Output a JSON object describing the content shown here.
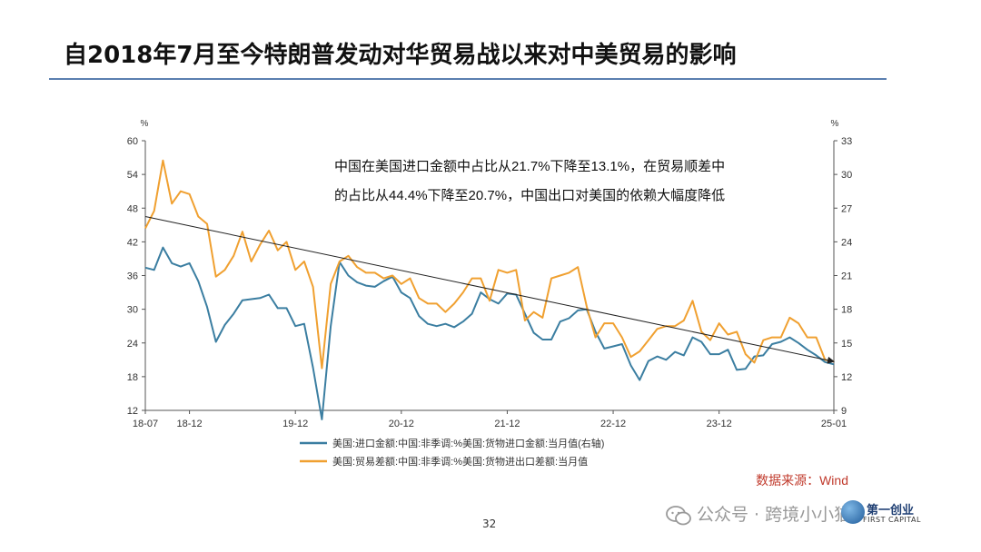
{
  "page": {
    "title": "自2018年7月至今特朗普发动对华贸易战以来对中美贸易的影响",
    "page_number": "32",
    "watermark": "公众号 · 跨境小小猫",
    "logo_cn": "第一创业",
    "logo_en": "FIRST CAPITAL"
  },
  "chart_data": {
    "type": "line",
    "annotation_line1": "中国在美国进口金额中占比从21.7%下降至13.1%，在贸易顺差中",
    "annotation_line2": "的占比从44.4%下降至20.7%，中国出口对美国的依赖大幅度降低",
    "source": "数据来源：Wind",
    "left_axis": {
      "unit": "%",
      "min": 12,
      "max": 60,
      "ticks": [
        12,
        18,
        24,
        30,
        36,
        42,
        48,
        54,
        60
      ]
    },
    "right_axis": {
      "unit": "%",
      "min": 9,
      "max": 33,
      "ticks": [
        9,
        12,
        15,
        18,
        21,
        24,
        27,
        30,
        33
      ]
    },
    "x_ticks": [
      "18-07",
      "18-12",
      "19-12",
      "20-12",
      "21-12",
      "22-12",
      "23-12",
      "25-01"
    ],
    "x_tick_months": [
      0,
      5,
      17,
      29,
      41,
      53,
      65,
      78
    ],
    "series": [
      {
        "name": "美国:进口金额:中国:非季调:%美国:货物进口金额:当月值(右轴)",
        "axis": "right",
        "color": "#3b7ea1",
        "values": [
          21.7,
          21.5,
          23.5,
          22.1,
          21.8,
          22.1,
          20.5,
          18.2,
          15.1,
          16.6,
          17.6,
          18.8,
          18.9,
          19.0,
          19.3,
          18.1,
          18.1,
          16.5,
          16.7,
          12.8,
          8.2,
          16.5,
          22.2,
          21.0,
          20.4,
          20.1,
          20.0,
          20.5,
          20.9,
          19.5,
          19.0,
          17.4,
          16.7,
          16.5,
          16.7,
          16.4,
          16.9,
          17.6,
          19.5,
          18.9,
          18.5,
          19.4,
          19.3,
          17.6,
          15.9,
          15.3,
          15.3,
          16.9,
          17.2,
          17.9,
          18.0,
          16.0,
          14.5,
          14.7,
          14.9,
          13.0,
          11.7,
          13.4,
          13.8,
          13.5,
          14.2,
          13.9,
          15.5,
          15.1,
          14.0,
          14.0,
          14.4,
          12.6,
          12.7,
          13.8,
          13.9,
          14.9,
          15.1,
          15.5,
          15.0,
          14.4,
          13.9,
          13.3,
          13.1
        ]
      },
      {
        "name": "美国:贸易差额:中国:非季调:%美国:货物进出口差额:当月值",
        "axis": "left",
        "color": "#f0a030",
        "values": [
          44.4,
          47.5,
          56.5,
          48.8,
          51.0,
          50.5,
          46.5,
          45.2,
          35.8,
          37.0,
          39.5,
          43.8,
          38.5,
          41.5,
          44.0,
          40.5,
          42.0,
          37.0,
          38.5,
          34.0,
          19.5,
          34.5,
          38.5,
          39.5,
          37.5,
          36.5,
          36.5,
          35.5,
          36.0,
          34.5,
          35.5,
          32.0,
          31.0,
          31.0,
          29.5,
          31.0,
          33.0,
          35.5,
          35.5,
          31.5,
          37.0,
          36.5,
          37.0,
          28.0,
          29.5,
          28.5,
          35.5,
          36.0,
          36.5,
          37.5,
          30.5,
          25.0,
          27.5,
          27.5,
          25.0,
          21.5,
          22.5,
          24.5,
          26.5,
          27.0,
          27.0,
          28.0,
          31.5,
          26.0,
          24.5,
          27.5,
          25.5,
          26.0,
          22.0,
          20.5,
          24.5,
          25.0,
          25.0,
          28.5,
          27.5,
          25.0,
          25.0,
          21.0,
          20.7
        ]
      }
    ],
    "trend_line": {
      "x0": 0,
      "y0_left": 46.5,
      "x1": 78,
      "y1_left": 20.7
    }
  }
}
